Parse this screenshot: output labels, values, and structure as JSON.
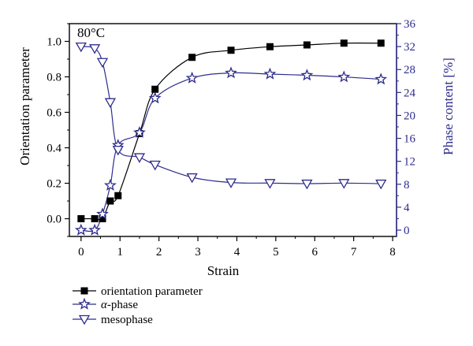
{
  "chart_data": {
    "type": "line",
    "annotation": "80°C",
    "xlabel": "Strain",
    "ylabel_left": "Orientation parameter",
    "ylabel_right": "Phase content [%]",
    "xlim": [
      -0.3,
      8.1
    ],
    "ylim_left": [
      -0.1,
      1.1
    ],
    "ylim_right": [
      -1.1,
      36
    ],
    "xticks": [
      "0",
      "1",
      "2",
      "3",
      "4",
      "5",
      "6",
      "7",
      "8"
    ],
    "yticks_left": [
      "0.0",
      "0.2",
      "0.4",
      "0.6",
      "0.8",
      "1.0"
    ],
    "yticks_right": [
      "0",
      "4",
      "8",
      "12",
      "16",
      "20",
      "24",
      "28",
      "32",
      "36"
    ],
    "grid": false,
    "legend_position": "bottom-left",
    "series": [
      {
        "name": "orientation parameter",
        "axis": "left",
        "marker": "square",
        "color": "#000000",
        "x": [
          0.0,
          0.35,
          0.55,
          0.75,
          0.95,
          1.5,
          1.9,
          2.85,
          3.85,
          4.85,
          5.8,
          6.75,
          7.7
        ],
        "y": [
          0.0,
          0.0,
          0.0,
          0.1,
          0.13,
          0.48,
          0.73,
          0.91,
          0.95,
          0.97,
          0.98,
          0.99,
          0.99
        ]
      },
      {
        "name": "α-phase",
        "axis": "right",
        "marker": "star",
        "color": "#2e2c8c",
        "x": [
          0.0,
          0.35,
          0.55,
          0.75,
          0.95,
          1.5,
          1.9,
          2.85,
          3.85,
          4.85,
          5.8,
          6.75,
          7.7
        ],
        "y": [
          0.0,
          0.0,
          2.8,
          7.8,
          14.8,
          17.0,
          23.0,
          26.5,
          27.4,
          27.2,
          27.0,
          26.7,
          26.3
        ]
      },
      {
        "name": "mesophase",
        "axis": "right",
        "marker": "triangle-down",
        "color": "#2e2c8c",
        "x": [
          0.0,
          0.35,
          0.55,
          0.75,
          0.95,
          1.5,
          1.9,
          2.85,
          3.85,
          4.85,
          5.8,
          6.75,
          7.7
        ],
        "y": [
          32.0,
          31.7,
          29.3,
          22.3,
          14.0,
          12.7,
          11.4,
          9.2,
          8.3,
          8.2,
          8.1,
          8.2,
          8.1
        ]
      }
    ]
  }
}
